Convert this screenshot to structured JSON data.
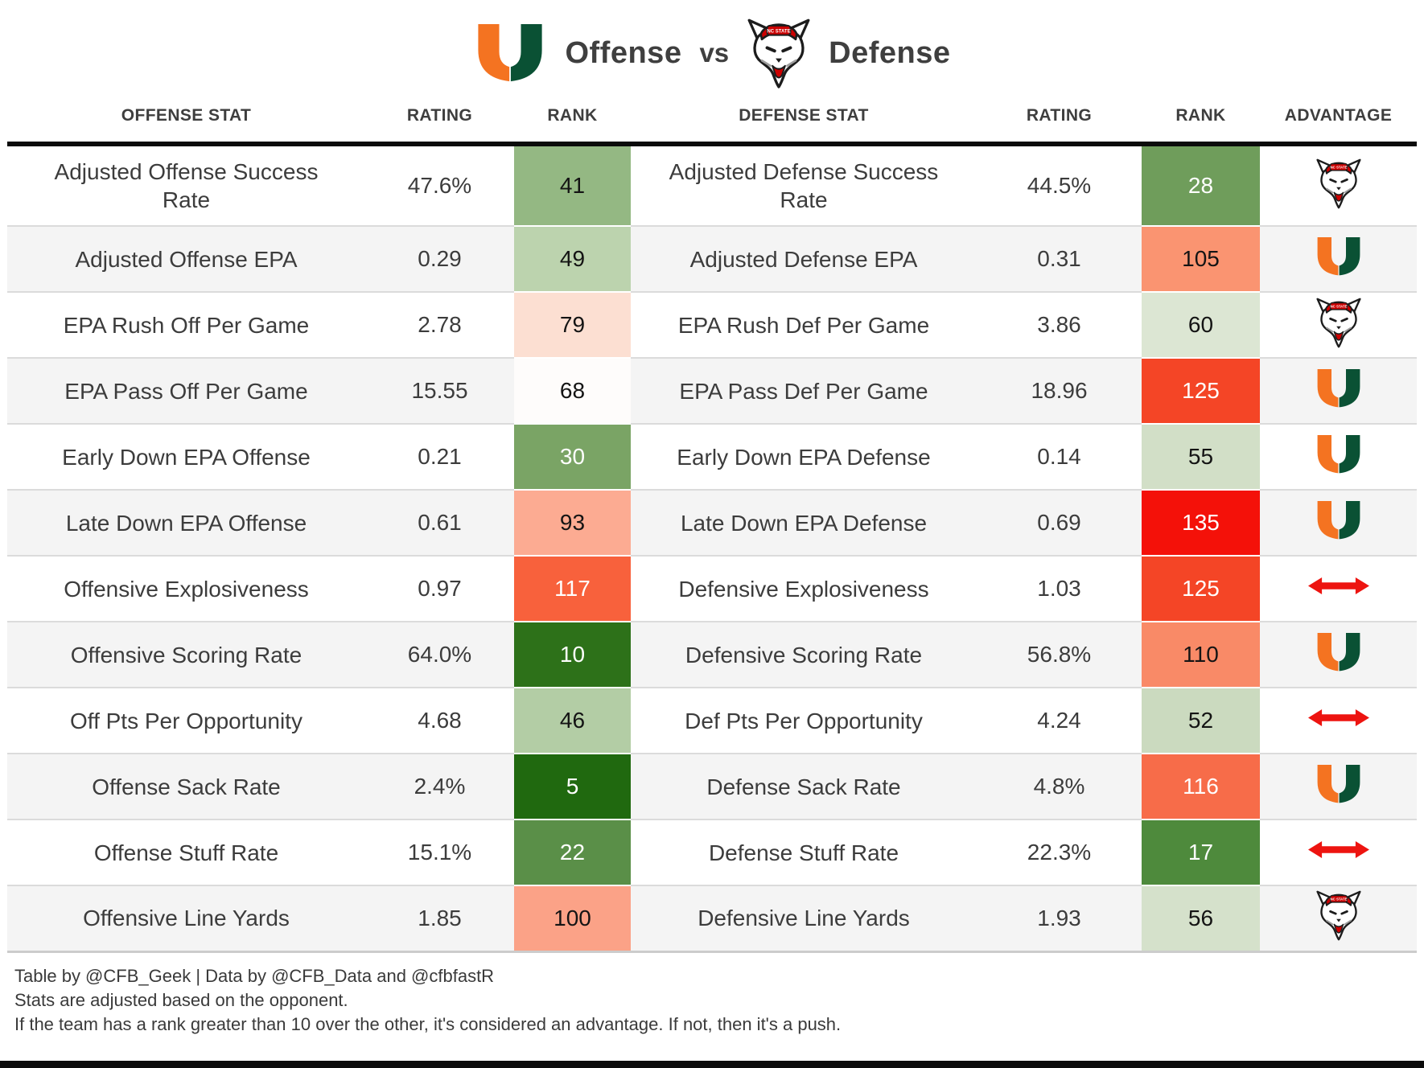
{
  "title": {
    "left_label": "Offense",
    "vs": "vs",
    "right_label": "Defense"
  },
  "icons": {
    "miami": "miami-u-logo",
    "ncstate": "ncstate-wolf-logo",
    "push": "red-double-arrow"
  },
  "colors": {
    "miami_orange": "#f47321",
    "miami_green": "#0a5134",
    "ncstate_red": "#cc0000",
    "push_red": "#ed1410",
    "top_rule": "#0b0b0b",
    "row_alt": "#f4f4f4",
    "separator": "#dbdbdb"
  },
  "chart_data": {
    "type": "table",
    "title": "Miami Offense vs NC State Defense",
    "columns": [
      "OFFENSE STAT",
      "RATING",
      "RANK",
      "DEFENSE STAT",
      "RATING",
      "RANK",
      "ADVANTAGE"
    ],
    "rows": [
      {
        "offense": {
          "stat": "Adjusted Offense Success Rate",
          "rating": "47.6%",
          "rank": "41",
          "rank_bg": "#94b883",
          "rank_fg": "#141414"
        },
        "defense": {
          "stat": "Adjusted Defense Success Rate",
          "rating": "44.5%",
          "rank": "28",
          "rank_bg": "#6f9d5b",
          "rank_fg": "#ffffff"
        },
        "advantage": "ncstate"
      },
      {
        "offense": {
          "stat": "Adjusted Offense EPA",
          "rating": "0.29",
          "rank": "49",
          "rank_bg": "#bcd3ae",
          "rank_fg": "#141414"
        },
        "defense": {
          "stat": "Adjusted Defense EPA",
          "rating": "0.31",
          "rank": "105",
          "rank_bg": "#fa9471",
          "rank_fg": "#141414"
        },
        "advantage": "miami"
      },
      {
        "offense": {
          "stat": "EPA Rush Off Per Game",
          "rating": "2.78",
          "rank": "79",
          "rank_bg": "#fcdfd2",
          "rank_fg": "#141414"
        },
        "defense": {
          "stat": "EPA Rush Def Per Game",
          "rating": "3.86",
          "rank": "60",
          "rank_bg": "#dce6d3",
          "rank_fg": "#141414"
        },
        "advantage": "ncstate"
      },
      {
        "offense": {
          "stat": "EPA Pass Off Per Game",
          "rating": "15.55",
          "rank": "68",
          "rank_bg": "#fefcfb",
          "rank_fg": "#141414"
        },
        "defense": {
          "stat": "EPA Pass Def Per Game",
          "rating": "18.96",
          "rank": "125",
          "rank_bg": "#f44526",
          "rank_fg": "#ffffff"
        },
        "advantage": "miami"
      },
      {
        "offense": {
          "stat": "Early Down EPA Offense",
          "rating": "0.21",
          "rank": "30",
          "rank_bg": "#7aa465",
          "rank_fg": "#ffffff"
        },
        "defense": {
          "stat": "Early Down EPA Defense",
          "rating": "0.14",
          "rank": "55",
          "rank_bg": "#d2dfc7",
          "rank_fg": "#141414"
        },
        "advantage": "miami"
      },
      {
        "offense": {
          "stat": "Late Down EPA Offense",
          "rating": "0.61",
          "rank": "93",
          "rank_bg": "#fcab92",
          "rank_fg": "#141414"
        },
        "defense": {
          "stat": "Late Down EPA Defense",
          "rating": "0.69",
          "rank": "135",
          "rank_bg": "#f41109",
          "rank_fg": "#ffffff"
        },
        "advantage": "miami"
      },
      {
        "offense": {
          "stat": "Offensive Explosiveness",
          "rating": "0.97",
          "rank": "117",
          "rank_bg": "#f8613c",
          "rank_fg": "#ffffff"
        },
        "defense": {
          "stat": "Defensive Explosiveness",
          "rating": "1.03",
          "rank": "125",
          "rank_bg": "#f44526",
          "rank_fg": "#ffffff"
        },
        "advantage": "push"
      },
      {
        "offense": {
          "stat": "Offensive Scoring Rate",
          "rating": "64.0%",
          "rank": "10",
          "rank_bg": "#2d7119",
          "rank_fg": "#ffffff"
        },
        "defense": {
          "stat": "Defensive Scoring Rate",
          "rating": "56.8%",
          "rank": "110",
          "rank_bg": "#f98a67",
          "rank_fg": "#141414"
        },
        "advantage": "miami"
      },
      {
        "offense": {
          "stat": "Off Pts Per Opportunity",
          "rating": "4.68",
          "rank": "46",
          "rank_bg": "#b3cda5",
          "rank_fg": "#141414"
        },
        "defense": {
          "stat": "Def Pts Per Opportunity",
          "rating": "4.24",
          "rank": "52",
          "rank_bg": "#cbdabf",
          "rank_fg": "#141414"
        },
        "advantage": "push"
      },
      {
        "offense": {
          "stat": "Offense Sack Rate",
          "rating": "2.4%",
          "rank": "5",
          "rank_bg": "#20690f",
          "rank_fg": "#ffffff"
        },
        "defense": {
          "stat": "Defense Sack Rate",
          "rating": "4.8%",
          "rank": "116",
          "rank_bg": "#f76c49",
          "rank_fg": "#ffffff"
        },
        "advantage": "miami"
      },
      {
        "offense": {
          "stat": "Offense Stuff Rate",
          "rating": "15.1%",
          "rank": "22",
          "rank_bg": "#5a8f48",
          "rank_fg": "#ffffff"
        },
        "defense": {
          "stat": "Defense Stuff Rate",
          "rating": "22.3%",
          "rank": "17",
          "rank_bg": "#4e8a3c",
          "rank_fg": "#ffffff"
        },
        "advantage": "push"
      },
      {
        "offense": {
          "stat": "Offensive Line Yards",
          "rating": "1.85",
          "rank": "100",
          "rank_bg": "#fba287",
          "rank_fg": "#141414"
        },
        "defense": {
          "stat": "Defensive Line Yards",
          "rating": "1.93",
          "rank": "56",
          "rank_bg": "#d5e1cb",
          "rank_fg": "#141414"
        },
        "advantage": "ncstate"
      }
    ]
  },
  "footer": {
    "credit": "Table by @CFB_Geek | Data by @CFB_Data and @cfbfastR",
    "note1": "Stats are adjusted based on the opponent.",
    "note2": "If the team has a rank greater than 10 over the other, it's considered an advantage. If not, then it's a push."
  }
}
